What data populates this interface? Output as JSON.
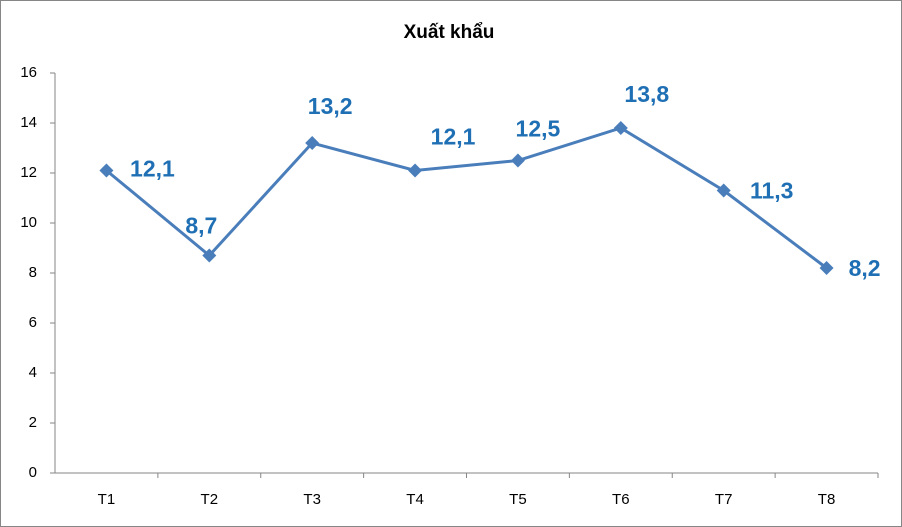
{
  "chart_data": {
    "type": "line",
    "title": "Xuất khẩu",
    "categories": [
      "T1",
      "T2",
      "T3",
      "T4",
      "T5",
      "T6",
      "T7",
      "T8"
    ],
    "series": [
      {
        "name": "Xuất khẩu",
        "color": "#4a7ebb",
        "values": [
          12.1,
          8.7,
          13.2,
          12.1,
          12.5,
          13.8,
          11.3,
          8.2
        ],
        "value_labels": [
          "12,1",
          "8,7",
          "13,2",
          "12,1",
          "12,5",
          "13,8",
          "11,3",
          "8,2"
        ],
        "label_color": "#1f6fb4"
      }
    ],
    "ylim": [
      0,
      16
    ],
    "yticks": [
      0,
      2,
      4,
      6,
      8,
      10,
      12,
      14,
      16
    ],
    "grid": false,
    "legend": false
  }
}
